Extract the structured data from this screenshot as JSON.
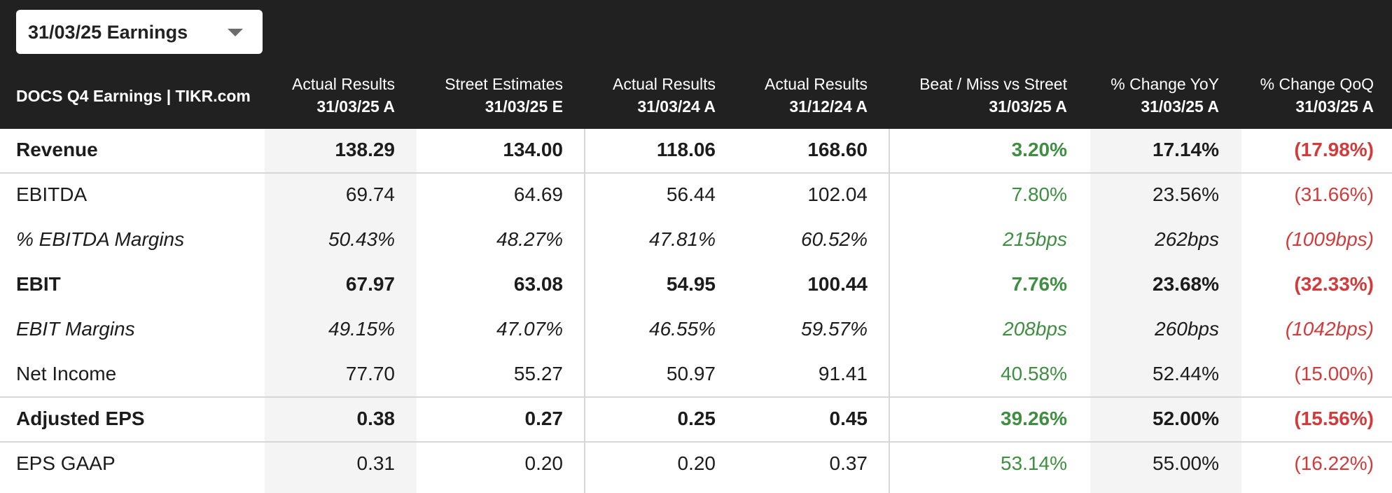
{
  "dropdown": {
    "label": "31/03/25 Earnings"
  },
  "table": {
    "title": "DOCS Q4 Earnings | TIKR.com",
    "columns": [
      {
        "line1": "Actual Results",
        "line2": "31/03/25 A"
      },
      {
        "line1": "Street Estimates",
        "line2": "31/03/25 E"
      },
      {
        "line1": "Actual Results",
        "line2": "31/03/24 A"
      },
      {
        "line1": "Actual Results",
        "line2": "31/12/24 A"
      },
      {
        "line1": "Beat / Miss vs Street",
        "line2": "31/03/25 A"
      },
      {
        "line1": "% Change YoY",
        "line2": "31/03/25 A"
      },
      {
        "line1": "% Change QoQ",
        "line2": "31/03/25 A"
      }
    ],
    "rows": [
      {
        "label": "Revenue",
        "values": [
          "138.29",
          "134.00",
          "118.06",
          "168.60",
          "3.20%",
          "17.14%",
          "(17.98%)"
        ]
      },
      {
        "label": "EBITDA",
        "values": [
          "69.74",
          "64.69",
          "56.44",
          "102.04",
          "7.80%",
          "23.56%",
          "(31.66%)"
        ]
      },
      {
        "label": "% EBITDA Margins",
        "values": [
          "50.43%",
          "48.27%",
          "47.81%",
          "60.52%",
          "215bps",
          "262bps",
          "(1009bps)"
        ]
      },
      {
        "label": "EBIT",
        "values": [
          "67.97",
          "63.08",
          "54.95",
          "100.44",
          "7.76%",
          "23.68%",
          "(32.33%)"
        ]
      },
      {
        "label": "EBIT Margins",
        "values": [
          "49.15%",
          "47.07%",
          "46.55%",
          "59.57%",
          "208bps",
          "260bps",
          "(1042bps)"
        ]
      },
      {
        "label": "Net Income",
        "values": [
          "77.70",
          "55.27",
          "50.97",
          "91.41",
          "40.58%",
          "52.44%",
          "(15.00%)"
        ]
      },
      {
        "label": "Adjusted EPS",
        "values": [
          "0.38",
          "0.27",
          "0.25",
          "0.45",
          "39.26%",
          "52.00%",
          "(15.56%)"
        ]
      },
      {
        "label": "EPS GAAP",
        "values": [
          "0.31",
          "0.20",
          "0.20",
          "0.37",
          "53.14%",
          "55.00%",
          "(16.22%)"
        ]
      }
    ]
  },
  "colors": {
    "header_bg": "#212121",
    "beat_green": "#3f8e41",
    "miss_red": "#d23b3b",
    "shaded_column": "#f4f4f4"
  }
}
